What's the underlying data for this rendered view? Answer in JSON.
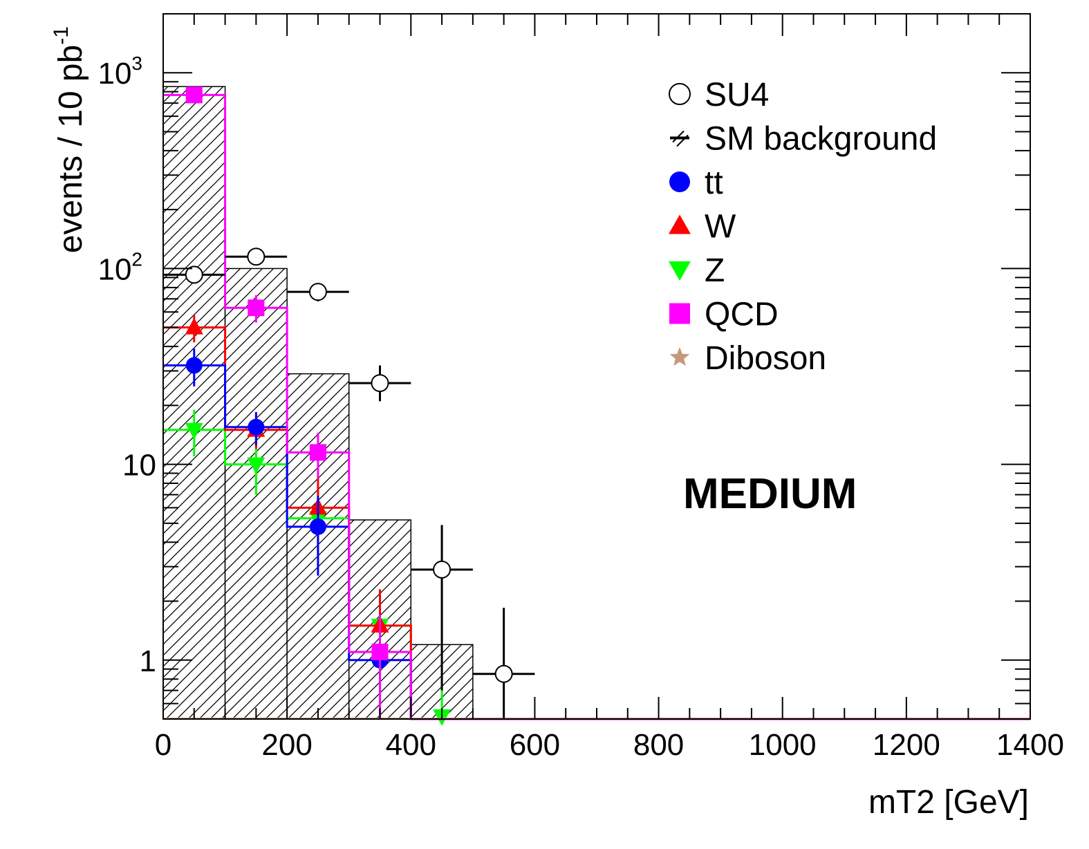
{
  "chart_data": {
    "type": "histogram",
    "xlabel": "mT2 [GeV]",
    "ylabel": "events / 10 pb",
    "ylabel_superscript": "-1",
    "xlim": [
      0,
      1400
    ],
    "ylim": [
      0.5,
      2000
    ],
    "yscale": "log",
    "x_ticks": [
      "0",
      "200",
      "400",
      "600",
      "800",
      "1000",
      "1200",
      "1400"
    ],
    "y_ticks": [
      {
        "value": 1,
        "base": "1",
        "exp": ""
      },
      {
        "value": 10,
        "base": "10",
        "exp": ""
      },
      {
        "value": 100,
        "base": "10",
        "exp": "2"
      },
      {
        "value": 1000,
        "base": "10",
        "exp": "3"
      }
    ],
    "bin_edges": [
      0,
      100,
      200,
      300,
      400,
      500,
      600,
      700,
      800,
      900,
      1000,
      1100,
      1200,
      1300,
      1400
    ],
    "annotation": "MEDIUM",
    "legend_position": "top-right",
    "series": [
      {
        "name": "SU4",
        "kind": "points",
        "marker": "open-circle",
        "color": "#000000",
        "values": [
          93,
          115,
          76,
          26,
          2.9,
          0.85
        ],
        "err_lo": [
          0,
          0,
          8,
          5,
          2.2,
          0.85
        ],
        "err_hi": [
          0,
          0,
          8,
          6,
          2.0,
          1.0
        ]
      },
      {
        "name": "SM background",
        "kind": "hatched-hist",
        "color": "#000000",
        "values": [
          850,
          100,
          29,
          5.2,
          1.2,
          0,
          0,
          0,
          0,
          0,
          0,
          0,
          0,
          0
        ]
      },
      {
        "name": "tt",
        "kind": "hist-points",
        "marker": "circle",
        "color": "#0000ff",
        "values": [
          32,
          15.5,
          4.8,
          1.0,
          0,
          0,
          0,
          0,
          0,
          0,
          0,
          0,
          0,
          0
        ],
        "err_lo": [
          7,
          3,
          2.1,
          0.5
        ],
        "err_hi": [
          7,
          3,
          2.1,
          0.5
        ]
      },
      {
        "name": "W",
        "kind": "hist-points",
        "marker": "triangle-up",
        "color": "#ff0000",
        "values": [
          50,
          15,
          6.0,
          1.5,
          0,
          0,
          0,
          0,
          0,
          0,
          0,
          0,
          0,
          0
        ],
        "err_lo": [
          8,
          3,
          2.5,
          0.8
        ],
        "err_hi": [
          8,
          3,
          2.5,
          0.8
        ]
      },
      {
        "name": "Z",
        "kind": "hist-points",
        "marker": "triangle-down",
        "color": "#00ff00",
        "values": [
          15,
          10,
          5.3,
          1.5,
          0.5,
          0,
          0,
          0,
          0,
          0,
          0,
          0,
          0,
          0
        ],
        "err_lo": [
          4,
          3,
          2.3,
          0.7,
          0.3
        ],
        "err_hi": [
          4,
          3,
          2.3,
          0.8,
          0.7
        ]
      },
      {
        "name": "QCD",
        "kind": "hist-points",
        "marker": "square",
        "color": "#ff00ff",
        "values": [
          770,
          63,
          11.5,
          1.1,
          0,
          0,
          0,
          0,
          0,
          0,
          0,
          0,
          0,
          0
        ],
        "err_lo": [
          40,
          10,
          3,
          0.6
        ],
        "err_hi": [
          40,
          10,
          3,
          0.6
        ]
      },
      {
        "name": "Diboson",
        "kind": "hist-points",
        "marker": "star",
        "color": "#c49a7c",
        "values": [
          0,
          0,
          0,
          0,
          0,
          0,
          0,
          0,
          0,
          0,
          0,
          0,
          0,
          0
        ]
      }
    ]
  }
}
